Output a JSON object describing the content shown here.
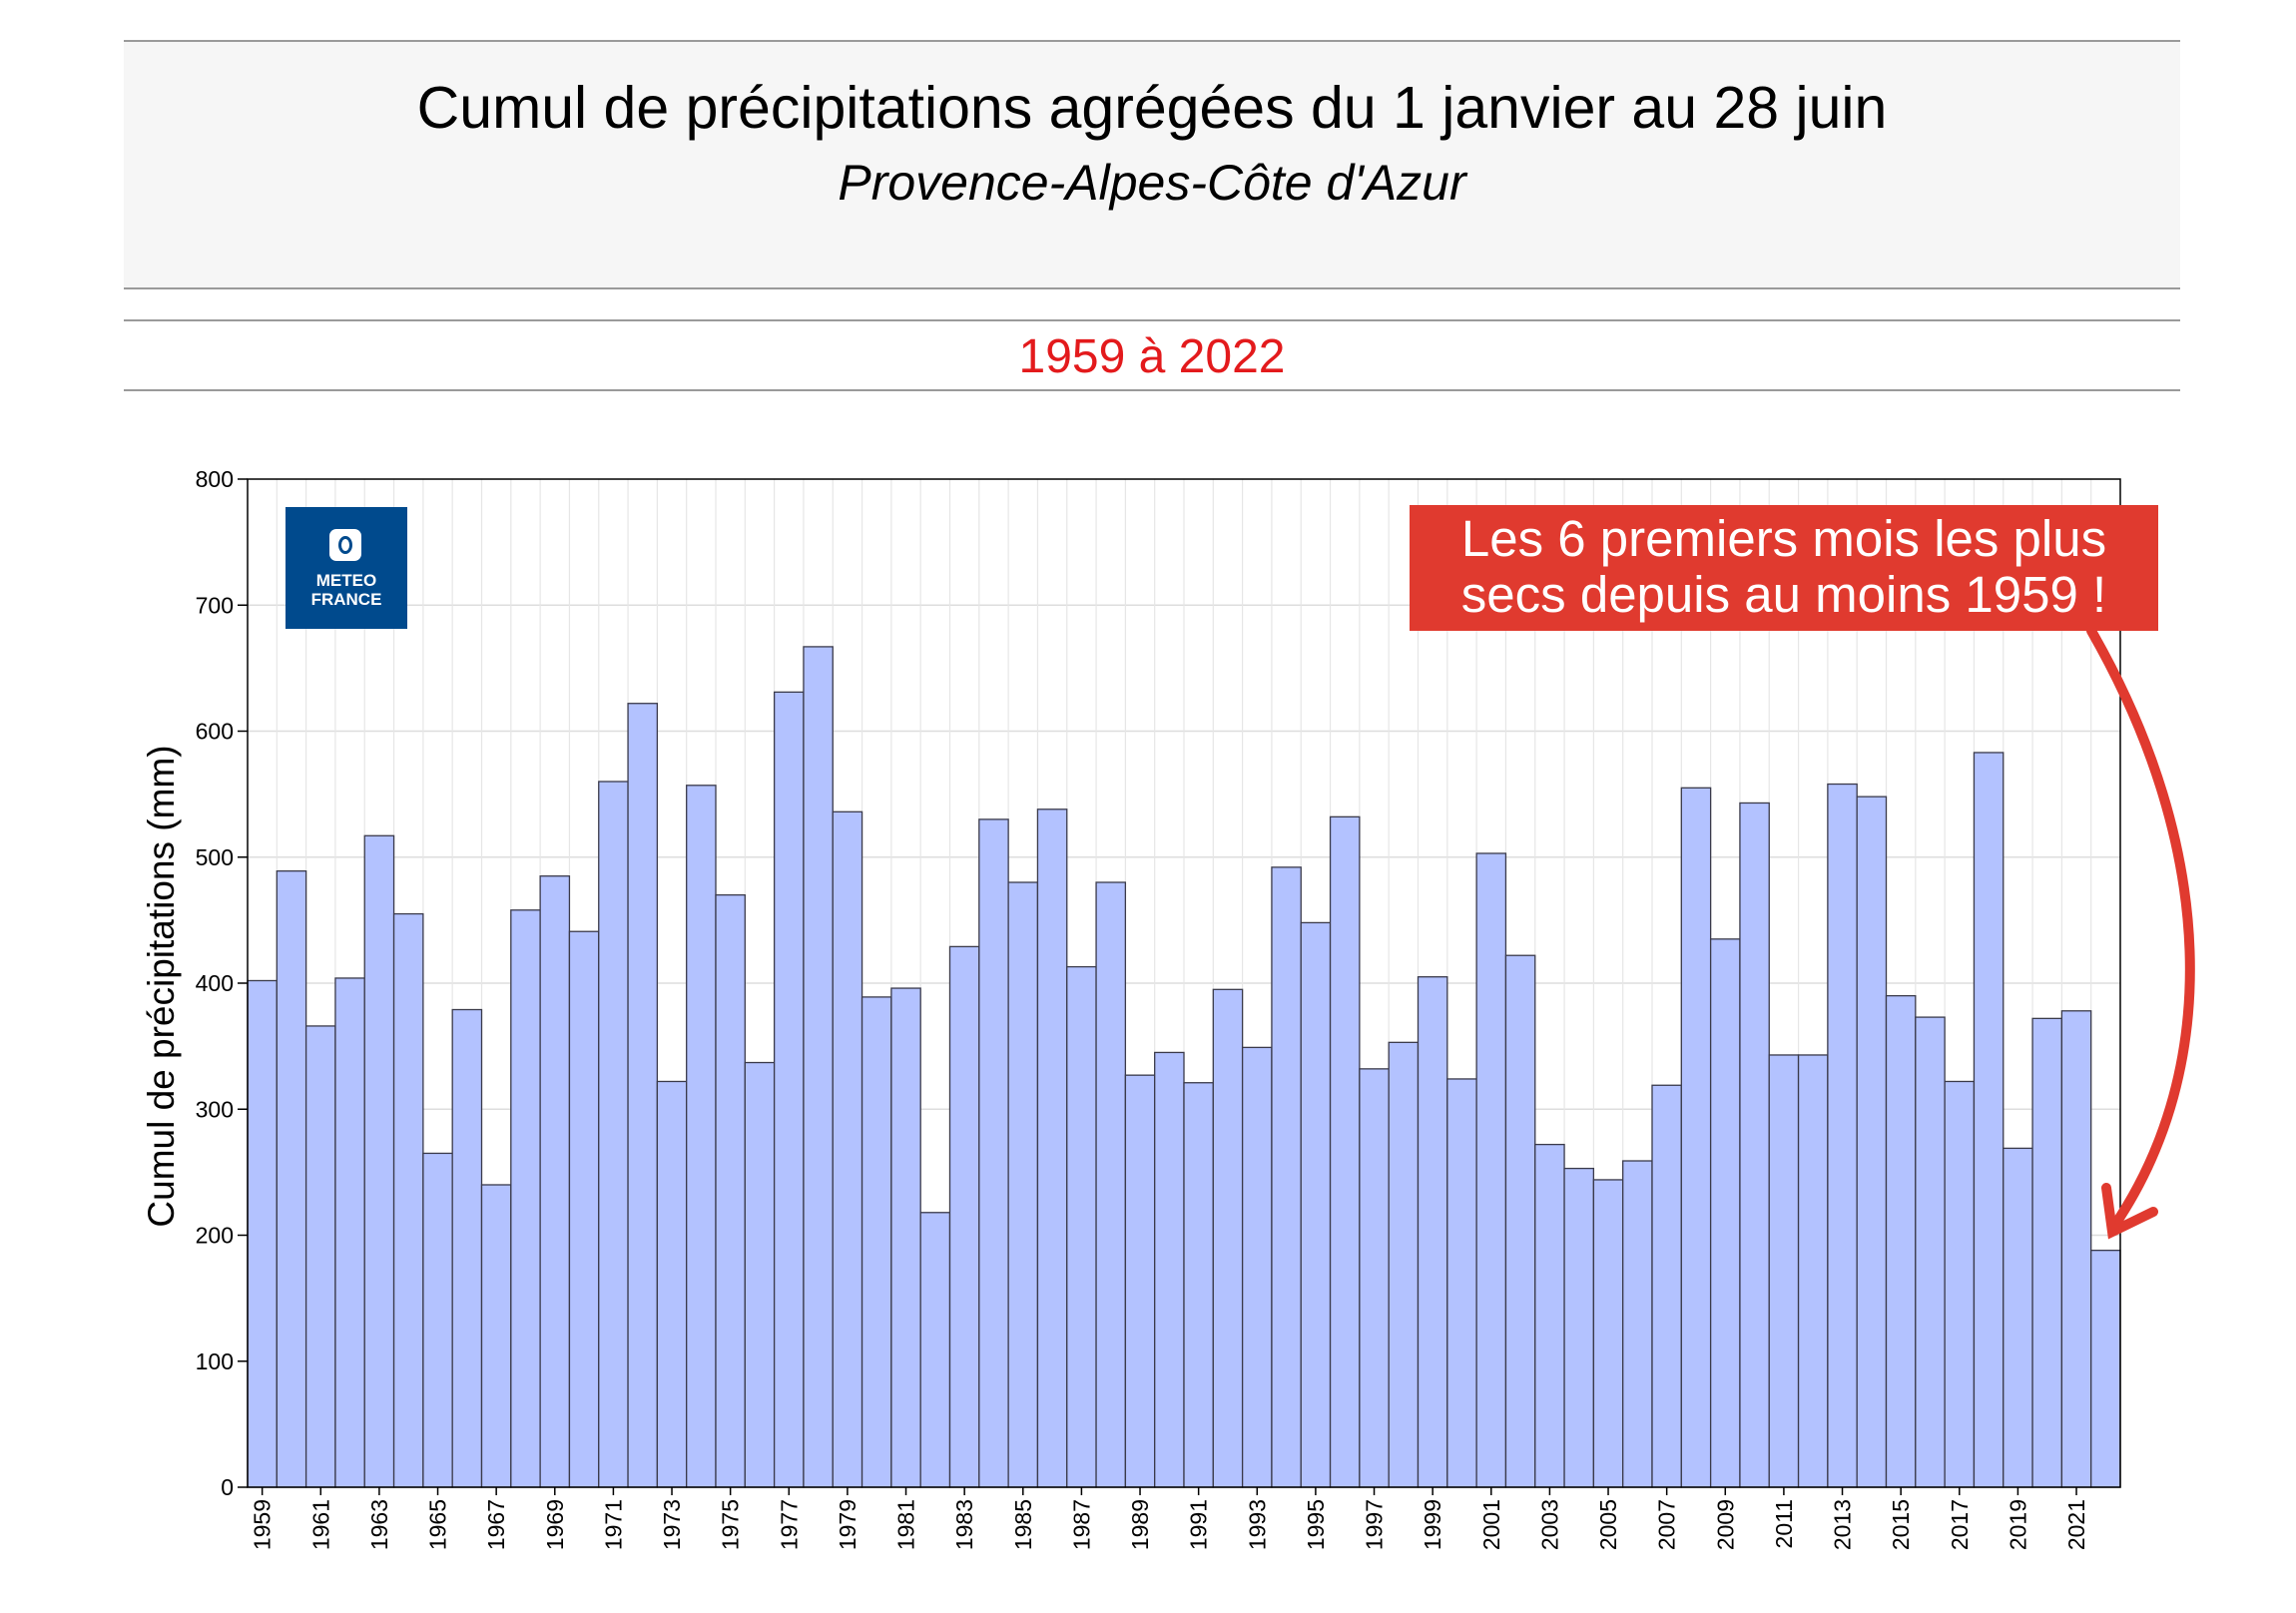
{
  "header": {
    "title": "Cumul de précipitations agrégées du 1 janvier au 28 juin",
    "subtitle": "Provence-Alpes-Côte d'Azur"
  },
  "period_label": "1959 à 2022",
  "logo": {
    "line1": "METEO",
    "line2": "FRANCE"
  },
  "annotation": {
    "line1": "Les 6 premiers mois les plus",
    "line2": "secs depuis au moins 1959 !"
  },
  "colors": {
    "bar_fill": "#b3c2ff",
    "bar_stroke": "#3a3a4a",
    "period_text": "#e31a1c",
    "callout_bg": "#e03a2f",
    "arrow": "#e03a2f",
    "logo_bg": "#004a8d"
  },
  "chart_data": {
    "type": "bar",
    "ylabel": "Cumul de précipitations (mm)",
    "xlabel": "",
    "ylim": [
      0,
      800
    ],
    "yticks": [
      0,
      100,
      200,
      300,
      400,
      500,
      600,
      700,
      800
    ],
    "grid": true,
    "tick_label_every": 2,
    "categories": [
      "1959",
      "1960",
      "1961",
      "1962",
      "1963",
      "1964",
      "1965",
      "1966",
      "1967",
      "1968",
      "1969",
      "1970",
      "1971",
      "1972",
      "1973",
      "1974",
      "1975",
      "1976",
      "1977",
      "1978",
      "1979",
      "1980",
      "1981",
      "1982",
      "1983",
      "1984",
      "1985",
      "1986",
      "1987",
      "1988",
      "1989",
      "1990",
      "1991",
      "1992",
      "1993",
      "1994",
      "1995",
      "1996",
      "1997",
      "1998",
      "1999",
      "2000",
      "2001",
      "2002",
      "2003",
      "2004",
      "2005",
      "2006",
      "2007",
      "2008",
      "2009",
      "2010",
      "2011",
      "2012",
      "2013",
      "2014",
      "2015",
      "2016",
      "2017",
      "2018",
      "2019",
      "2020",
      "2021",
      "2022"
    ],
    "values": [
      402,
      489,
      366,
      404,
      517,
      455,
      265,
      379,
      240,
      458,
      485,
      441,
      560,
      622,
      322,
      557,
      470,
      337,
      631,
      667,
      536,
      389,
      396,
      218,
      429,
      530,
      480,
      538,
      413,
      480,
      327,
      345,
      321,
      395,
      349,
      492,
      448,
      532,
      332,
      353,
      405,
      324,
      503,
      422,
      272,
      253,
      244,
      259,
      319,
      555,
      435,
      543,
      343,
      343,
      558,
      548,
      390,
      373,
      322,
      583,
      269,
      372,
      378,
      188
    ]
  }
}
